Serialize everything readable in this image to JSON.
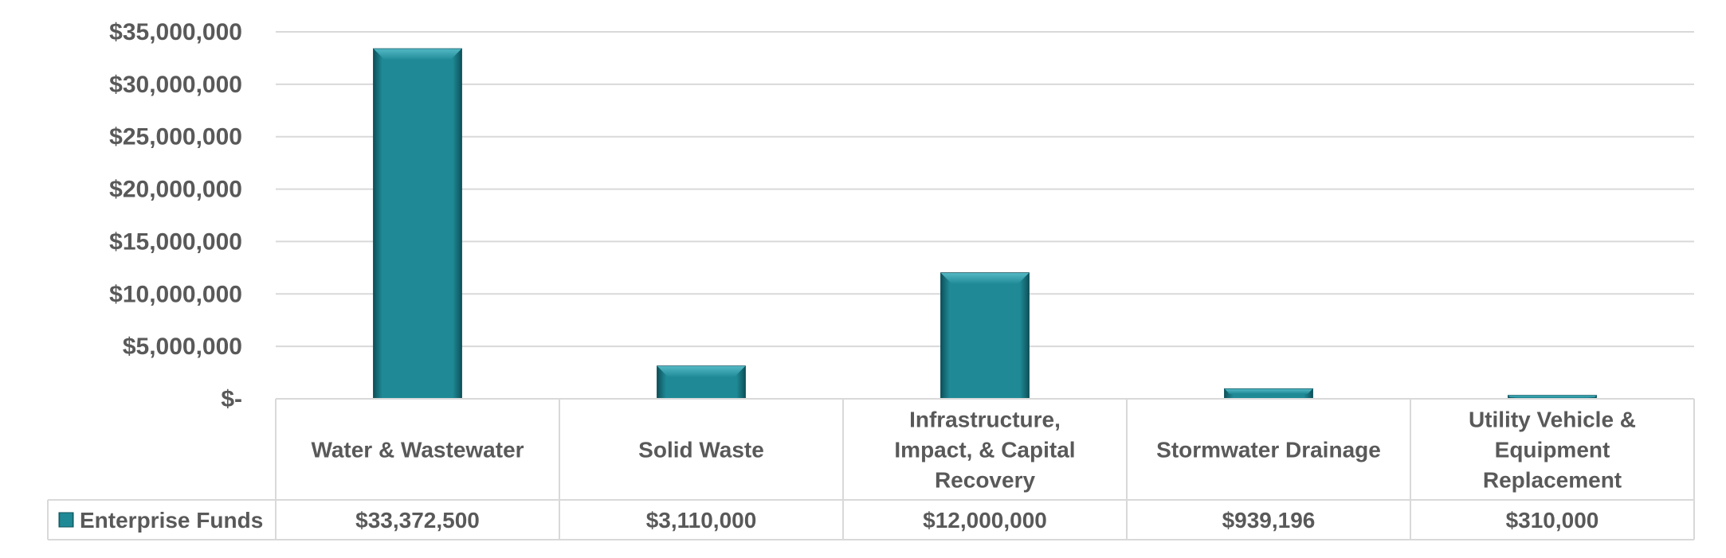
{
  "chart_data": {
    "type": "bar",
    "categories": [
      "Water & Wastewater",
      "Solid Waste",
      "Infrastructure, Impact, & Capital Recovery",
      "Stormwater Drainage",
      "Utility Vehicle & Equipment Replacement"
    ],
    "category_lines": [
      [
        "Water & Wastewater"
      ],
      [
        "Solid Waste"
      ],
      [
        "Infrastructure,",
        "Impact, & Capital",
        "Recovery"
      ],
      [
        "Stormwater Drainage"
      ],
      [
        "Utility Vehicle &",
        "Equipment",
        "Replacement"
      ]
    ],
    "series": [
      {
        "name": "Enterprise Funds",
        "values": [
          33372500,
          3110000,
          12000000,
          939196,
          310000
        ],
        "labels": [
          "$33,372,500",
          "$3,110,000",
          "$12,000,000",
          "$939,196",
          "$310,000"
        ]
      }
    ],
    "y_ticks": [
      0,
      5000000,
      10000000,
      15000000,
      20000000,
      25000000,
      30000000,
      35000000
    ],
    "y_tick_labels": [
      "$-",
      "$5,000,000",
      "$10,000,000",
      "$15,000,000",
      "$20,000,000",
      "$25,000,000",
      "$30,000,000",
      "$35,000,000"
    ],
    "ylim": [
      0,
      35000000
    ],
    "title": "",
    "xlabel": "",
    "ylabel": "",
    "grid": true,
    "data_table": true,
    "legend_placement": "data-table-left",
    "colors": {
      "bar": "#1F8A96",
      "bar_light": "#52B8C4",
      "bar_dark": "#0E525B",
      "grid": "#D9D9D9",
      "table_border": "#D9D9D9",
      "text": "#595959"
    }
  }
}
